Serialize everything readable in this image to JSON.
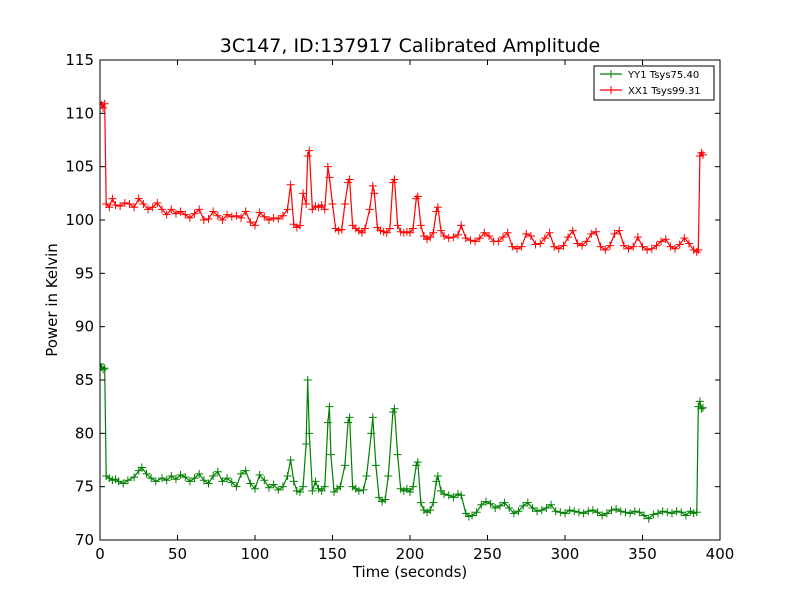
{
  "chart_data": {
    "type": "line",
    "title": "3C147, ID:137917 Calibrated Amplitude",
    "xlabel": "Time (seconds)",
    "ylabel": "Power in Kelvin",
    "xlim": [
      0,
      400
    ],
    "ylim": [
      70,
      115
    ],
    "xticks": [
      0,
      50,
      100,
      150,
      200,
      250,
      300,
      350,
      400
    ],
    "yticks": [
      70,
      75,
      80,
      85,
      90,
      95,
      100,
      105,
      110,
      115
    ],
    "grid": false,
    "legend_position": "top-right",
    "marker": "+",
    "series": [
      {
        "name": "YY1 Tsys75.40",
        "color": "#008000",
        "points": [
          [
            0,
            86.5
          ],
          [
            1,
            86.2
          ],
          [
            2,
            86.0
          ],
          [
            3,
            86.1
          ],
          [
            4,
            76.0
          ],
          [
            6,
            75.8
          ],
          [
            8,
            75.6
          ],
          [
            10,
            75.7
          ],
          [
            12,
            75.5
          ],
          [
            15,
            75.3
          ],
          [
            18,
            75.6
          ],
          [
            22,
            75.9
          ],
          [
            25,
            76.5
          ],
          [
            27,
            76.8
          ],
          [
            30,
            76.2
          ],
          [
            33,
            75.8
          ],
          [
            36,
            75.5
          ],
          [
            40,
            75.8
          ],
          [
            43,
            75.6
          ],
          [
            46,
            76.0
          ],
          [
            49,
            75.7
          ],
          [
            52,
            76.1
          ],
          [
            55,
            75.9
          ],
          [
            58,
            75.5
          ],
          [
            61,
            75.8
          ],
          [
            64,
            76.2
          ],
          [
            67,
            75.6
          ],
          [
            70,
            75.3
          ],
          [
            73,
            76.0
          ],
          [
            76,
            76.4
          ],
          [
            79,
            75.5
          ],
          [
            82,
            75.8
          ],
          [
            85,
            75.4
          ],
          [
            88,
            75.0
          ],
          [
            91,
            76.2
          ],
          [
            94,
            76.5
          ],
          [
            97,
            75.3
          ],
          [
            100,
            74.8
          ],
          [
            103,
            76.1
          ],
          [
            106,
            75.6
          ],
          [
            109,
            74.9
          ],
          [
            112,
            75.2
          ],
          [
            115,
            74.7
          ],
          [
            118,
            75.0
          ],
          [
            121,
            76.0
          ],
          [
            123,
            77.5
          ],
          [
            125,
            75.5
          ],
          [
            127,
            74.6
          ],
          [
            129,
            74.5
          ],
          [
            131,
            75.0
          ],
          [
            133,
            79.0
          ],
          [
            134,
            85.0
          ],
          [
            135,
            80.0
          ],
          [
            137,
            74.6
          ],
          [
            139,
            75.5
          ],
          [
            141,
            74.8
          ],
          [
            143,
            74.6
          ],
          [
            145,
            75.0
          ],
          [
            147,
            81.0
          ],
          [
            148,
            82.5
          ],
          [
            149,
            78.0
          ],
          [
            151,
            74.5
          ],
          [
            153,
            74.8
          ],
          [
            155,
            75.0
          ],
          [
            158,
            77.0
          ],
          [
            160,
            81.0
          ],
          [
            161,
            81.5
          ],
          [
            163,
            75.0
          ],
          [
            165,
            74.8
          ],
          [
            167,
            74.6
          ],
          [
            170,
            74.7
          ],
          [
            172,
            76.0
          ],
          [
            175,
            80.0
          ],
          [
            176,
            81.5
          ],
          [
            178,
            77.0
          ],
          [
            180,
            74.0
          ],
          [
            182,
            73.6
          ],
          [
            184,
            73.8
          ],
          [
            186,
            76.0
          ],
          [
            189,
            82.0
          ],
          [
            190,
            82.3
          ],
          [
            192,
            78.0
          ],
          [
            194,
            74.8
          ],
          [
            196,
            74.6
          ],
          [
            198,
            74.8
          ],
          [
            200,
            74.5
          ],
          [
            202,
            75.0
          ],
          [
            204,
            77.0
          ],
          [
            205,
            77.3
          ],
          [
            207,
            73.5
          ],
          [
            209,
            72.8
          ],
          [
            211,
            72.6
          ],
          [
            213,
            72.8
          ],
          [
            215,
            73.5
          ],
          [
            217,
            75.5
          ],
          [
            218,
            76.0
          ],
          [
            220,
            74.6
          ],
          [
            222,
            74.3
          ],
          [
            225,
            74.2
          ],
          [
            228,
            74.0
          ],
          [
            231,
            74.3
          ],
          [
            233,
            74.2
          ],
          [
            236,
            72.5
          ],
          [
            238,
            72.2
          ],
          [
            240,
            72.3
          ],
          [
            243,
            72.6
          ],
          [
            246,
            73.3
          ],
          [
            249,
            73.6
          ],
          [
            252,
            73.4
          ],
          [
            255,
            73.0
          ],
          [
            258,
            73.2
          ],
          [
            261,
            73.5
          ],
          [
            264,
            73.0
          ],
          [
            267,
            72.5
          ],
          [
            270,
            72.7
          ],
          [
            273,
            73.2
          ],
          [
            276,
            73.5
          ],
          [
            279,
            73.0
          ],
          [
            282,
            72.7
          ],
          [
            285,
            72.8
          ],
          [
            288,
            73.0
          ],
          [
            291,
            73.3
          ],
          [
            294,
            72.7
          ],
          [
            297,
            72.6
          ],
          [
            300,
            72.5
          ],
          [
            303,
            72.8
          ],
          [
            306,
            72.7
          ],
          [
            309,
            72.6
          ],
          [
            312,
            72.5
          ],
          [
            315,
            72.7
          ],
          [
            318,
            72.8
          ],
          [
            321,
            72.6
          ],
          [
            324,
            72.3
          ],
          [
            327,
            72.5
          ],
          [
            330,
            72.8
          ],
          [
            333,
            72.9
          ],
          [
            336,
            72.7
          ],
          [
            339,
            72.6
          ],
          [
            342,
            72.5
          ],
          [
            345,
            72.7
          ],
          [
            348,
            72.6
          ],
          [
            351,
            72.3
          ],
          [
            354,
            72.0
          ],
          [
            357,
            72.4
          ],
          [
            360,
            72.5
          ],
          [
            363,
            72.7
          ],
          [
            366,
            72.6
          ],
          [
            369,
            72.5
          ],
          [
            372,
            72.7
          ],
          [
            375,
            72.6
          ],
          [
            378,
            72.3
          ],
          [
            381,
            72.7
          ],
          [
            383,
            72.5
          ],
          [
            385,
            72.6
          ],
          [
            386,
            82.5
          ],
          [
            387,
            83.0
          ],
          [
            388,
            82.3
          ],
          [
            389,
            82.4
          ]
        ]
      },
      {
        "name": "XX1 Tsys99.31",
        "color": "#ff0000",
        "points": [
          [
            0,
            111.0
          ],
          [
            1,
            110.8
          ],
          [
            2,
            110.5
          ],
          [
            3,
            110.9
          ],
          [
            4,
            101.5
          ],
          [
            6,
            101.2
          ],
          [
            8,
            102.0
          ],
          [
            10,
            101.4
          ],
          [
            13,
            101.3
          ],
          [
            16,
            101.6
          ],
          [
            19,
            101.5
          ],
          [
            22,
            101.2
          ],
          [
            25,
            102.0
          ],
          [
            28,
            101.5
          ],
          [
            31,
            101.0
          ],
          [
            34,
            101.2
          ],
          [
            37,
            101.6
          ],
          [
            40,
            101.0
          ],
          [
            43,
            100.5
          ],
          [
            46,
            101.0
          ],
          [
            49,
            100.6
          ],
          [
            52,
            100.8
          ],
          [
            55,
            100.5
          ],
          [
            58,
            100.2
          ],
          [
            61,
            100.6
          ],
          [
            64,
            101.0
          ],
          [
            67,
            100.0
          ],
          [
            70,
            100.1
          ],
          [
            73,
            100.8
          ],
          [
            76,
            100.4
          ],
          [
            79,
            100.0
          ],
          [
            82,
            100.5
          ],
          [
            85,
            100.3
          ],
          [
            88,
            100.4
          ],
          [
            91,
            100.2
          ],
          [
            94,
            100.8
          ],
          [
            97,
            99.8
          ],
          [
            100,
            99.5
          ],
          [
            103,
            100.7
          ],
          [
            106,
            100.3
          ],
          [
            109,
            100.0
          ],
          [
            112,
            100.2
          ],
          [
            115,
            100.1
          ],
          [
            118,
            100.4
          ],
          [
            121,
            101.0
          ],
          [
            123,
            103.3
          ],
          [
            125,
            99.6
          ],
          [
            127,
            99.3
          ],
          [
            129,
            99.5
          ],
          [
            131,
            102.5
          ],
          [
            133,
            101.5
          ],
          [
            134,
            106.0
          ],
          [
            135,
            106.5
          ],
          [
            137,
            101.0
          ],
          [
            139,
            101.3
          ],
          [
            141,
            101.2
          ],
          [
            143,
            101.4
          ],
          [
            145,
            101.0
          ],
          [
            147,
            105.0
          ],
          [
            148,
            104.0
          ],
          [
            150,
            101.5
          ],
          [
            152,
            99.2
          ],
          [
            154,
            99.0
          ],
          [
            156,
            99.1
          ],
          [
            158,
            101.5
          ],
          [
            160,
            103.5
          ],
          [
            161,
            103.8
          ],
          [
            163,
            99.5
          ],
          [
            165,
            99.2
          ],
          [
            167,
            99.0
          ],
          [
            169,
            98.8
          ],
          [
            171,
            99.2
          ],
          [
            174,
            101.0
          ],
          [
            176,
            103.2
          ],
          [
            177,
            102.5
          ],
          [
            179,
            99.3
          ],
          [
            181,
            99.0
          ],
          [
            183,
            98.9
          ],
          [
            185,
            98.8
          ],
          [
            187,
            99.2
          ],
          [
            189,
            103.5
          ],
          [
            190,
            103.8
          ],
          [
            192,
            99.5
          ],
          [
            194,
            98.9
          ],
          [
            196,
            98.8
          ],
          [
            198,
            98.9
          ],
          [
            200,
            98.8
          ],
          [
            202,
            99.2
          ],
          [
            204,
            102.0
          ],
          [
            205,
            102.2
          ],
          [
            207,
            99.5
          ],
          [
            209,
            98.5
          ],
          [
            211,
            98.2
          ],
          [
            213,
            98.4
          ],
          [
            215,
            98.8
          ],
          [
            217,
            100.8
          ],
          [
            218,
            101.2
          ],
          [
            220,
            99.0
          ],
          [
            222,
            98.5
          ],
          [
            225,
            98.3
          ],
          [
            228,
            98.4
          ],
          [
            231,
            98.6
          ],
          [
            233,
            99.5
          ],
          [
            236,
            98.3
          ],
          [
            239,
            98.1
          ],
          [
            242,
            98.0
          ],
          [
            245,
            98.3
          ],
          [
            248,
            98.8
          ],
          [
            251,
            98.5
          ],
          [
            254,
            98.0
          ],
          [
            257,
            98.0
          ],
          [
            260,
            98.4
          ],
          [
            263,
            98.8
          ],
          [
            266,
            97.5
          ],
          [
            269,
            97.3
          ],
          [
            272,
            97.5
          ],
          [
            275,
            98.7
          ],
          [
            278,
            98.5
          ],
          [
            281,
            97.7
          ],
          [
            284,
            97.8
          ],
          [
            287,
            98.3
          ],
          [
            290,
            98.8
          ],
          [
            293,
            97.5
          ],
          [
            296,
            97.3
          ],
          [
            299,
            97.6
          ],
          [
            302,
            98.4
          ],
          [
            305,
            99.0
          ],
          [
            308,
            97.8
          ],
          [
            311,
            97.6
          ],
          [
            314,
            98.0
          ],
          [
            317,
            98.7
          ],
          [
            320,
            98.9
          ],
          [
            323,
            97.5
          ],
          [
            326,
            97.2
          ],
          [
            329,
            97.6
          ],
          [
            332,
            98.7
          ],
          [
            335,
            99.0
          ],
          [
            338,
            97.6
          ],
          [
            341,
            97.3
          ],
          [
            344,
            97.5
          ],
          [
            347,
            98.4
          ],
          [
            350,
            97.5
          ],
          [
            353,
            97.2
          ],
          [
            356,
            97.3
          ],
          [
            359,
            97.6
          ],
          [
            362,
            98.0
          ],
          [
            365,
            98.2
          ],
          [
            368,
            97.5
          ],
          [
            371,
            97.3
          ],
          [
            374,
            97.7
          ],
          [
            377,
            98.3
          ],
          [
            380,
            97.8
          ],
          [
            383,
            97.2
          ],
          [
            385,
            97.0
          ],
          [
            386,
            97.2
          ],
          [
            387,
            106.0
          ],
          [
            388,
            106.3
          ],
          [
            389,
            106.1
          ]
        ]
      }
    ]
  }
}
